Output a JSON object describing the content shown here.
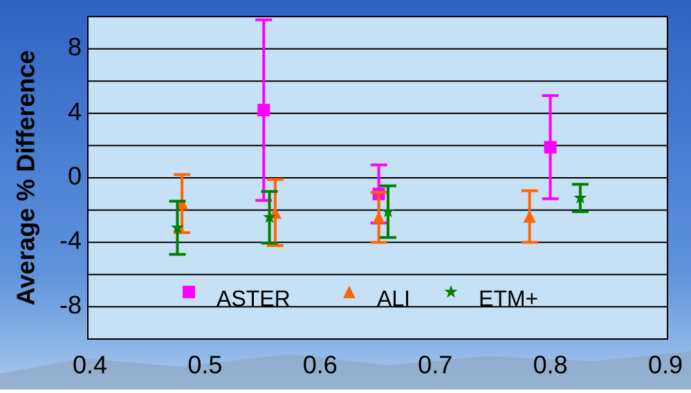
{
  "chart_data": {
    "type": "errorbar",
    "y_label": "Average % Difference",
    "xlim": [
      0.4,
      0.9
    ],
    "xticks": [
      0.4,
      0.5,
      0.6,
      0.7,
      0.8,
      0.9
    ],
    "ylim": [
      -10,
      10
    ],
    "yticks": [
      -8,
      -4,
      0,
      4,
      8
    ],
    "grid_lines": [
      -8,
      -6,
      -4,
      -2,
      0,
      2,
      4,
      6,
      8
    ],
    "series": [
      {
        "name": "ASTER",
        "color": "#ff00ff",
        "marker": "square",
        "x": [
          0.551,
          0.651,
          0.8
        ],
        "values": [
          4.2,
          -1.0,
          1.9
        ],
        "errors": [
          5.6,
          1.8,
          3.2
        ]
      },
      {
        "name": "ALI",
        "color": "#ff6600",
        "marker": "triangle",
        "x": [
          0.48,
          0.561,
          0.651,
          0.782
        ],
        "values": [
          -1.6,
          -2.15,
          -2.45,
          -2.4
        ],
        "errors": [
          1.8,
          2.05,
          1.55,
          1.6
        ]
      },
      {
        "name": "ETM+",
        "color": "#008000",
        "marker": "star",
        "x": [
          0.476,
          0.556,
          0.659,
          0.826
        ],
        "values": [
          -3.1,
          -2.45,
          -2.1,
          -1.25
        ],
        "errors": [
          1.65,
          1.6,
          1.6,
          0.85
        ]
      }
    ]
  }
}
